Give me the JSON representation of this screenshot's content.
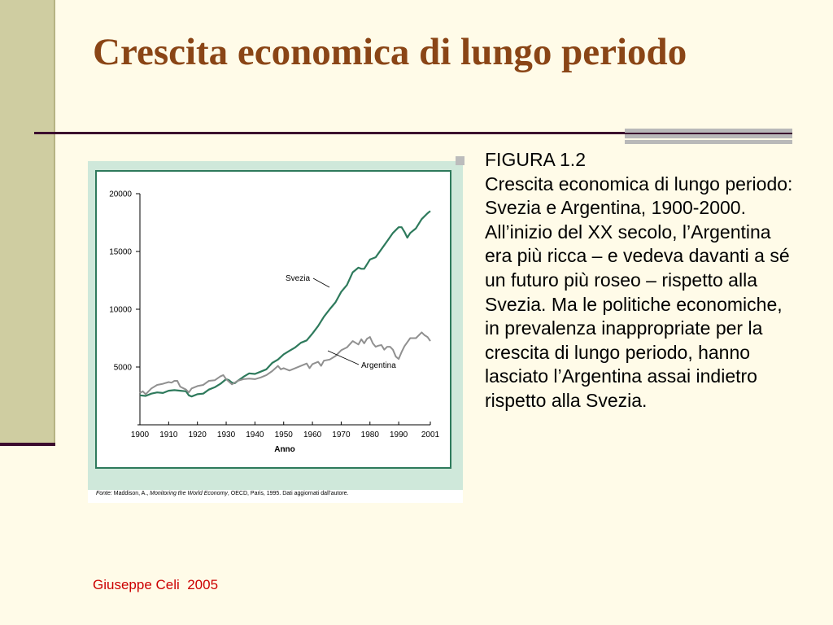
{
  "slide": {
    "title": "Crescita economica di lungo periodo",
    "footer": "Giuseppe Celi  2005",
    "caption": {
      "heading": "FIGURA 1.2",
      "text": "Crescita economica di lungo periodo: Svezia e Argentina, 1900-2000. All’inizio del XX secolo, l’Argentina era più ricca – e vedeva davanti a sé un futuro più roseo – rispetto alla Svezia. Ma le politiche economiche, in prevalenza inappropriate per la crescita di lungo periodo, hanno lasciato l’Argentina assai indietro rispetto alla Svezia."
    }
  },
  "colors": {
    "title": "#8a4516",
    "svezia": "#2e7a5c",
    "argentina": "#909090",
    "frame": "#2e7a5c",
    "panel_bg": "#cfe8da",
    "footer": "#cc0000"
  },
  "chart_data": {
    "type": "line",
    "xlabel": "Anno",
    "ylabel": "",
    "xlim": [
      1900,
      2001
    ],
    "ylim": [
      0,
      20000
    ],
    "x_ticks": [
      "1900",
      "1910",
      "1920",
      "1930",
      "1940",
      "1950",
      "1960",
      "1970",
      "1980",
      "1990",
      "2001"
    ],
    "y_ticks": [
      "5000",
      "10000",
      "15000",
      "20000"
    ],
    "series": [
      {
        "name": "Svezia",
        "points": [
          [
            1900,
            2550
          ],
          [
            1902,
            2500
          ],
          [
            1904,
            2700
          ],
          [
            1906,
            2800
          ],
          [
            1908,
            2750
          ],
          [
            1910,
            2950
          ],
          [
            1912,
            3000
          ],
          [
            1914,
            2950
          ],
          [
            1916,
            2900
          ],
          [
            1917,
            2550
          ],
          [
            1918,
            2450
          ],
          [
            1920,
            2650
          ],
          [
            1922,
            2700
          ],
          [
            1924,
            3050
          ],
          [
            1926,
            3250
          ],
          [
            1928,
            3550
          ],
          [
            1930,
            3950
          ],
          [
            1931,
            3850
          ],
          [
            1932,
            3650
          ],
          [
            1933,
            3600
          ],
          [
            1934,
            3800
          ],
          [
            1936,
            4150
          ],
          [
            1938,
            4450
          ],
          [
            1940,
            4400
          ],
          [
            1942,
            4600
          ],
          [
            1944,
            4800
          ],
          [
            1946,
            5350
          ],
          [
            1948,
            5650
          ],
          [
            1950,
            6100
          ],
          [
            1952,
            6400
          ],
          [
            1954,
            6700
          ],
          [
            1956,
            7100
          ],
          [
            1958,
            7300
          ],
          [
            1960,
            7900
          ],
          [
            1962,
            8550
          ],
          [
            1964,
            9350
          ],
          [
            1966,
            10000
          ],
          [
            1968,
            10600
          ],
          [
            1970,
            11500
          ],
          [
            1972,
            12100
          ],
          [
            1974,
            13200
          ],
          [
            1976,
            13600
          ],
          [
            1977,
            13500
          ],
          [
            1978,
            13500
          ],
          [
            1980,
            14300
          ],
          [
            1982,
            14500
          ],
          [
            1984,
            15200
          ],
          [
            1986,
            15900
          ],
          [
            1988,
            16600
          ],
          [
            1990,
            17100
          ],
          [
            1991,
            17100
          ],
          [
            1992,
            16700
          ],
          [
            1993,
            16200
          ],
          [
            1994,
            16600
          ],
          [
            1996,
            17000
          ],
          [
            1998,
            17800
          ],
          [
            2000,
            18300
          ],
          [
            2001,
            18500
          ]
        ]
      },
      {
        "name": "Argentina",
        "points": [
          [
            1900,
            2750
          ],
          [
            1901,
            2900
          ],
          [
            1902,
            2650
          ],
          [
            1904,
            3150
          ],
          [
            1906,
            3450
          ],
          [
            1908,
            3550
          ],
          [
            1910,
            3700
          ],
          [
            1911,
            3650
          ],
          [
            1912,
            3800
          ],
          [
            1913,
            3800
          ],
          [
            1914,
            3300
          ],
          [
            1916,
            3050
          ],
          [
            1917,
            2800
          ],
          [
            1918,
            3150
          ],
          [
            1920,
            3350
          ],
          [
            1922,
            3450
          ],
          [
            1924,
            3800
          ],
          [
            1926,
            3850
          ],
          [
            1928,
            4200
          ],
          [
            1929,
            4300
          ],
          [
            1930,
            3950
          ],
          [
            1932,
            3500
          ],
          [
            1934,
            3800
          ],
          [
            1936,
            3950
          ],
          [
            1938,
            4000
          ],
          [
            1940,
            3950
          ],
          [
            1942,
            4100
          ],
          [
            1944,
            4300
          ],
          [
            1946,
            4650
          ],
          [
            1948,
            5100
          ],
          [
            1949,
            4800
          ],
          [
            1950,
            4900
          ],
          [
            1952,
            4700
          ],
          [
            1954,
            4900
          ],
          [
            1956,
            5100
          ],
          [
            1958,
            5300
          ],
          [
            1959,
            4900
          ],
          [
            1960,
            5250
          ],
          [
            1962,
            5450
          ],
          [
            1963,
            5100
          ],
          [
            1964,
            5550
          ],
          [
            1966,
            5650
          ],
          [
            1968,
            5950
          ],
          [
            1970,
            6450
          ],
          [
            1972,
            6700
          ],
          [
            1974,
            7250
          ],
          [
            1975,
            7100
          ],
          [
            1976,
            6950
          ],
          [
            1977,
            7400
          ],
          [
            1978,
            7050
          ],
          [
            1979,
            7450
          ],
          [
            1980,
            7600
          ],
          [
            1981,
            7050
          ],
          [
            1982,
            6750
          ],
          [
            1983,
            6850
          ],
          [
            1984,
            6900
          ],
          [
            1985,
            6500
          ],
          [
            1986,
            6750
          ],
          [
            1987,
            6750
          ],
          [
            1988,
            6500
          ],
          [
            1989,
            5900
          ],
          [
            1990,
            5700
          ],
          [
            1991,
            6300
          ],
          [
            1992,
            6800
          ],
          [
            1994,
            7500
          ],
          [
            1996,
            7500
          ],
          [
            1998,
            8000
          ],
          [
            1999,
            7750
          ],
          [
            2000,
            7600
          ],
          [
            2001,
            7250
          ]
        ]
      }
    ],
    "annotations": [
      {
        "text": "Svezia",
        "series": "Svezia"
      },
      {
        "text": "Argentina",
        "series": "Argentina"
      }
    ],
    "source": {
      "prefix": "Fonte:",
      "text": " Maddison, A., ",
      "italic": "Monitoring the World Economy",
      "rest": ", OECD, Paris, 1995. Dati aggiornati dall’autore."
    }
  }
}
